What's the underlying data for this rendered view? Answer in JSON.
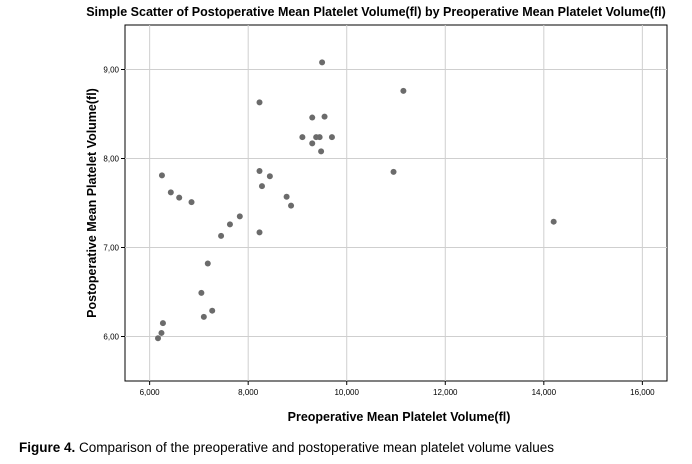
{
  "chart_data": {
    "type": "scatter",
    "title": "Simple Scatter of Postoperative Mean Platelet Volume(fl) by Preoperative Mean Platelet Volume(fl)",
    "xlabel": "Preoperative Mean Platelet Volume(fl)",
    "ylabel": "Postoperative Mean Platelet Volume(fl)",
    "xlim": [
      5500,
      16500
    ],
    "ylim": [
      5.5,
      9.5
    ],
    "x_ticks": [
      6000,
      8000,
      10000,
      12000,
      14000,
      16000
    ],
    "x_tick_labels": [
      "6,000",
      "8,000",
      "10,000",
      "12,000",
      "14,000",
      "16,000"
    ],
    "y_ticks": [
      6,
      7,
      8,
      9
    ],
    "y_tick_labels": [
      "6,00",
      "7,00",
      "8,00",
      "9,00"
    ],
    "grid": true,
    "point_color": "#6b6b6b",
    "points": [
      {
        "x": 9500,
        "y": 9.08
      },
      {
        "x": 8230,
        "y": 8.63
      },
      {
        "x": 11150,
        "y": 8.76
      },
      {
        "x": 9300,
        "y": 8.46
      },
      {
        "x": 9550,
        "y": 8.47
      },
      {
        "x": 9100,
        "y": 8.24
      },
      {
        "x": 9380,
        "y": 8.24
      },
      {
        "x": 9450,
        "y": 8.24
      },
      {
        "x": 9700,
        "y": 8.24
      },
      {
        "x": 9300,
        "y": 8.17
      },
      {
        "x": 9480,
        "y": 8.08
      },
      {
        "x": 6250,
        "y": 7.81
      },
      {
        "x": 8230,
        "y": 7.86
      },
      {
        "x": 8440,
        "y": 7.8
      },
      {
        "x": 10950,
        "y": 7.85
      },
      {
        "x": 8280,
        "y": 7.69
      },
      {
        "x": 6430,
        "y": 7.62
      },
      {
        "x": 6600,
        "y": 7.56
      },
      {
        "x": 6850,
        "y": 7.51
      },
      {
        "x": 8780,
        "y": 7.57
      },
      {
        "x": 8870,
        "y": 7.47
      },
      {
        "x": 7830,
        "y": 7.35
      },
      {
        "x": 7630,
        "y": 7.26
      },
      {
        "x": 7450,
        "y": 7.13
      },
      {
        "x": 8230,
        "y": 7.17
      },
      {
        "x": 14200,
        "y": 7.29
      },
      {
        "x": 7180,
        "y": 6.82
      },
      {
        "x": 7050,
        "y": 6.49
      },
      {
        "x": 7270,
        "y": 6.29
      },
      {
        "x": 7100,
        "y": 6.22
      },
      {
        "x": 6270,
        "y": 6.15
      },
      {
        "x": 6240,
        "y": 6.04
      },
      {
        "x": 6170,
        "y": 5.98
      }
    ]
  },
  "caption": {
    "label": "Figure 4.",
    "text": " Comparison of the preoperative and postoperative mean platelet volume values"
  }
}
